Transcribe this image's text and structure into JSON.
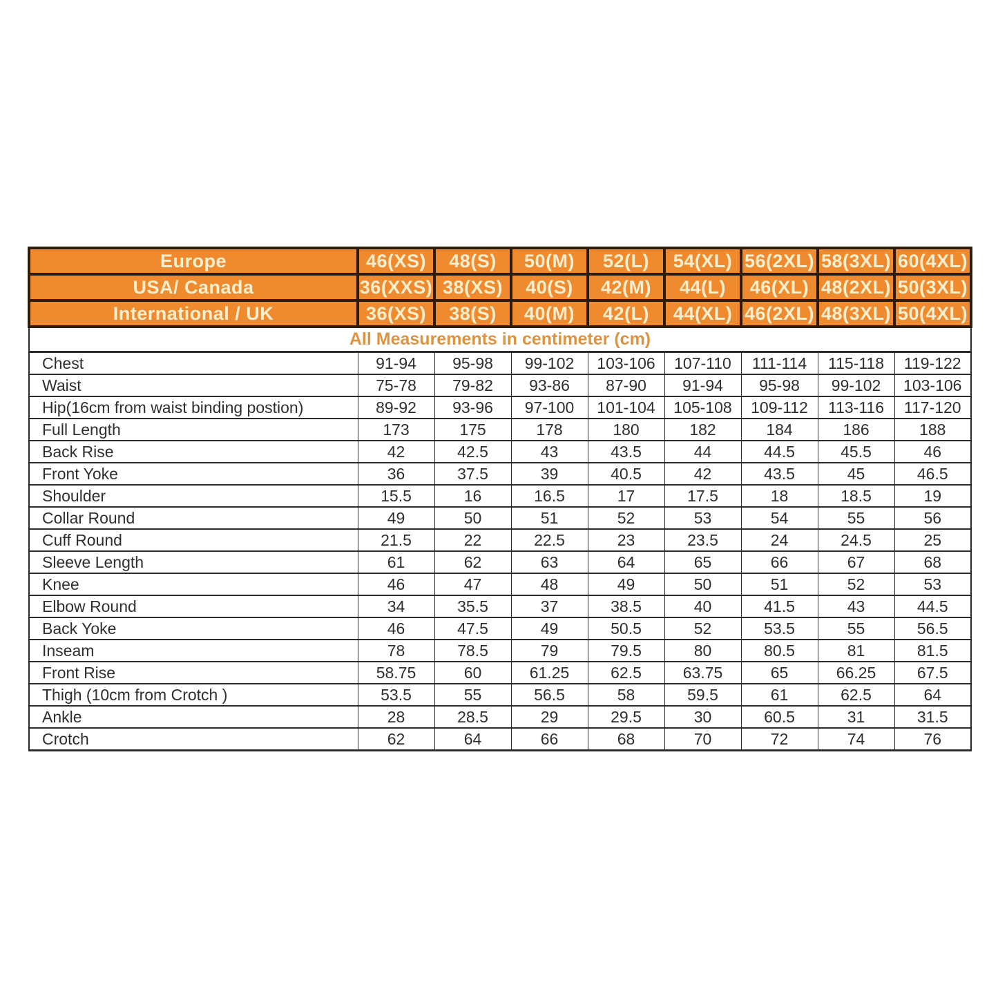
{
  "size_header": {
    "rows": [
      {
        "region": "Europe",
        "sizes": [
          "46(XS)",
          "48(S)",
          "50(M)",
          "52(L)",
          "54(XL)",
          "56(2XL)",
          "58(3XL)",
          "60(4XL)"
        ]
      },
      {
        "region": "USA/ Canada",
        "sizes": [
          "36(XXS)",
          "38(XS)",
          "40(S)",
          "42(M)",
          "44(L)",
          "46(XL)",
          "48(2XL)",
          "50(3XL)"
        ]
      },
      {
        "region": "International / UK",
        "sizes": [
          "36(XS)",
          "38(S)",
          "40(M)",
          "42(L)",
          "44(XL)",
          "46(2XL)",
          "48(3XL)",
          "50(4XL)"
        ]
      }
    ]
  },
  "units_note": "All Measurements in centimeter (cm)",
  "measurements": {
    "rows": [
      {
        "label": "Chest",
        "values": [
          "91-94",
          "95-98",
          "99-102",
          "103-106",
          "107-110",
          "111-114",
          "115-118",
          "119-122"
        ]
      },
      {
        "label": "Waist",
        "values": [
          "75-78",
          "79-82",
          "93-86",
          "87-90",
          "91-94",
          "95-98",
          "99-102",
          "103-106"
        ]
      },
      {
        "label": "Hip(16cm from waist binding postion)",
        "values": [
          "89-92",
          "93-96",
          "97-100",
          "101-104",
          "105-108",
          "109-112",
          "113-116",
          "117-120"
        ]
      },
      {
        "label": "Full Length",
        "values": [
          "173",
          "175",
          "178",
          "180",
          "182",
          "184",
          "186",
          "188"
        ]
      },
      {
        "label": "Back Rise",
        "values": [
          "42",
          "42.5",
          "43",
          "43.5",
          "44",
          "44.5",
          "45.5",
          "46"
        ]
      },
      {
        "label": "Front Yoke",
        "values": [
          "36",
          "37.5",
          "39",
          "40.5",
          "42",
          "43.5",
          "45",
          "46.5"
        ]
      },
      {
        "label": "Shoulder",
        "values": [
          "15.5",
          "16",
          "16.5",
          "17",
          "17.5",
          "18",
          "18.5",
          "19"
        ]
      },
      {
        "label": "Collar Round",
        "values": [
          "49",
          "50",
          "51",
          "52",
          "53",
          "54",
          "55",
          "56"
        ]
      },
      {
        "label": "Cuff Round",
        "values": [
          "21.5",
          "22",
          "22.5",
          "23",
          "23.5",
          "24",
          "24.5",
          "25"
        ]
      },
      {
        "label": "Sleeve Length",
        "values": [
          "61",
          "62",
          "63",
          "64",
          "65",
          "66",
          "67",
          "68"
        ]
      },
      {
        "label": "Knee",
        "values": [
          "46",
          "47",
          "48",
          "49",
          "50",
          "51",
          "52",
          "53"
        ]
      },
      {
        "label": "Elbow Round",
        "values": [
          "34",
          "35.5",
          "37",
          "38.5",
          "40",
          "41.5",
          "43",
          "44.5"
        ]
      },
      {
        "label": "Back Yoke",
        "values": [
          "46",
          "47.5",
          "49",
          "50.5",
          "52",
          "53.5",
          "55",
          "56.5"
        ]
      },
      {
        "label": "Inseam",
        "values": [
          "78",
          "78.5",
          "79",
          "79.5",
          "80",
          "80.5",
          "81",
          "81.5"
        ]
      },
      {
        "label": "Front Rise",
        "values": [
          "58.75",
          "60",
          "61.25",
          "62.5",
          "63.75",
          "65",
          "66.25",
          "67.5"
        ]
      },
      {
        "label": "Thigh (10cm from Crotch )",
        "values": [
          "53.5",
          "55",
          "56.5",
          "58",
          "59.5",
          "61",
          "62.5",
          "64"
        ]
      },
      {
        "label": "Ankle",
        "values": [
          "28",
          "28.5",
          "29",
          "29.5",
          "30",
          "60.5",
          "31",
          "31.5"
        ]
      },
      {
        "label": "Crotch",
        "values": [
          "62",
          "64",
          "66",
          "68",
          "70",
          "72",
          "74",
          "76"
        ]
      }
    ]
  },
  "colors": {
    "header_fill": "#EF8A2E",
    "header_text": "#F9EECD",
    "header_border": "#2E1B06",
    "units_note_text": "#DD9440",
    "body_text": "#2E2E2E",
    "body_border": "#2B2B2B"
  },
  "chart_data": {
    "type": "table",
    "title": "All Measurements in centimeter (cm)",
    "column_headers": {
      "Europe": [
        "46(XS)",
        "48(S)",
        "50(M)",
        "52(L)",
        "54(XL)",
        "56(2XL)",
        "58(3XL)",
        "60(4XL)"
      ],
      "USA/ Canada": [
        "36(XXS)",
        "38(XS)",
        "40(S)",
        "42(M)",
        "44(L)",
        "46(XL)",
        "48(2XL)",
        "50(3XL)"
      ],
      "International / UK": [
        "36(XS)",
        "38(S)",
        "40(M)",
        "42(L)",
        "44(XL)",
        "46(2XL)",
        "48(3XL)",
        "50(4XL)"
      ]
    },
    "row_labels": [
      "Chest",
      "Waist",
      "Hip(16cm from waist binding postion)",
      "Full Length",
      "Back Rise",
      "Front Yoke",
      "Shoulder",
      "Collar Round",
      "Cuff Round",
      "Sleeve Length",
      "Knee",
      "Elbow Round",
      "Back Yoke",
      "Inseam",
      "Front Rise",
      "Thigh (10cm from Crotch )",
      "Ankle",
      "Crotch"
    ],
    "rows": [
      [
        "91-94",
        "95-98",
        "99-102",
        "103-106",
        "107-110",
        "111-114",
        "115-118",
        "119-122"
      ],
      [
        "75-78",
        "79-82",
        "93-86",
        "87-90",
        "91-94",
        "95-98",
        "99-102",
        "103-106"
      ],
      [
        "89-92",
        "93-96",
        "97-100",
        "101-104",
        "105-108",
        "109-112",
        "113-116",
        "117-120"
      ],
      [
        "173",
        "175",
        "178",
        "180",
        "182",
        "184",
        "186",
        "188"
      ],
      [
        "42",
        "42.5",
        "43",
        "43.5",
        "44",
        "44.5",
        "45.5",
        "46"
      ],
      [
        "36",
        "37.5",
        "39",
        "40.5",
        "42",
        "43.5",
        "45",
        "46.5"
      ],
      [
        "15.5",
        "16",
        "16.5",
        "17",
        "17.5",
        "18",
        "18.5",
        "19"
      ],
      [
        "49",
        "50",
        "51",
        "52",
        "53",
        "54",
        "55",
        "56"
      ],
      [
        "21.5",
        "22",
        "22.5",
        "23",
        "23.5",
        "24",
        "24.5",
        "25"
      ],
      [
        "61",
        "62",
        "63",
        "64",
        "65",
        "66",
        "67",
        "68"
      ],
      [
        "46",
        "47",
        "48",
        "49",
        "50",
        "51",
        "52",
        "53"
      ],
      [
        "34",
        "35.5",
        "37",
        "38.5",
        "40",
        "41.5",
        "43",
        "44.5"
      ],
      [
        "46",
        "47.5",
        "49",
        "50.5",
        "52",
        "53.5",
        "55",
        "56.5"
      ],
      [
        "78",
        "78.5",
        "79",
        "79.5",
        "80",
        "80.5",
        "81",
        "81.5"
      ],
      [
        "58.75",
        "60",
        "61.25",
        "62.5",
        "63.75",
        "65",
        "66.25",
        "67.5"
      ],
      [
        "53.5",
        "55",
        "56.5",
        "58",
        "59.5",
        "61",
        "62.5",
        "64"
      ],
      [
        "28",
        "28.5",
        "29",
        "29.5",
        "30",
        "60.5",
        "31",
        "31.5"
      ],
      [
        "62",
        "64",
        "66",
        "68",
        "70",
        "72",
        "74",
        "76"
      ]
    ]
  }
}
